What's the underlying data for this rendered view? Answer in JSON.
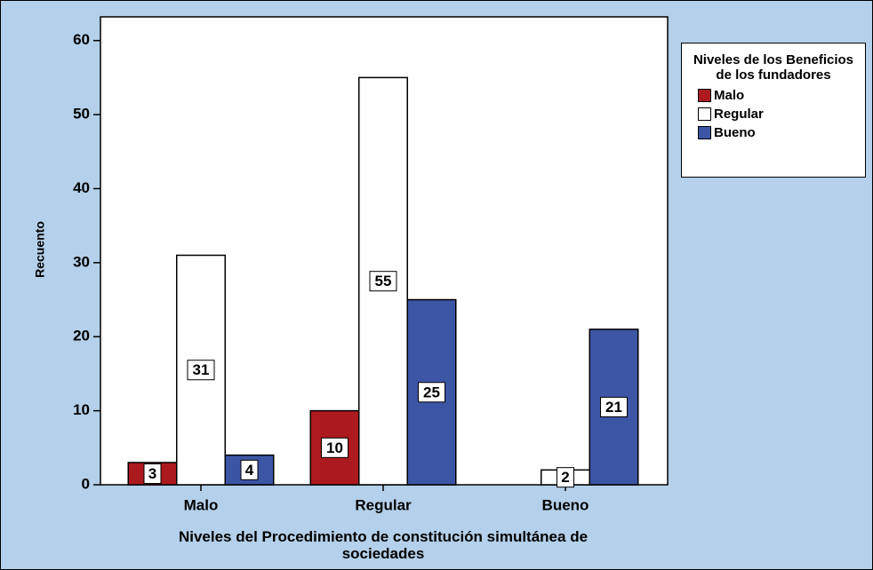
{
  "chart_data": {
    "type": "bar",
    "x_label": "Niveles del Procedimiento de constitución simultánea de sociedades",
    "y_label": "Recuento",
    "legend_title": "Niveles de los Beneficios de los fundadores",
    "categories": [
      "Malo",
      "Regular",
      "Bueno"
    ],
    "series": [
      {
        "name": "Malo",
        "color": "#ac1a20",
        "values": [
          3,
          10,
          0
        ]
      },
      {
        "name": "Regular",
        "color": "#ffffff",
        "values": [
          31,
          55,
          2
        ]
      },
      {
        "name": "Bueno",
        "color": "#3d55a5",
        "values": [
          4,
          25,
          21
        ]
      }
    ],
    "ylim": [
      0,
      63.2
    ],
    "yticks": [
      0,
      10,
      20,
      30,
      40,
      50,
      60
    ],
    "legend": "right"
  }
}
